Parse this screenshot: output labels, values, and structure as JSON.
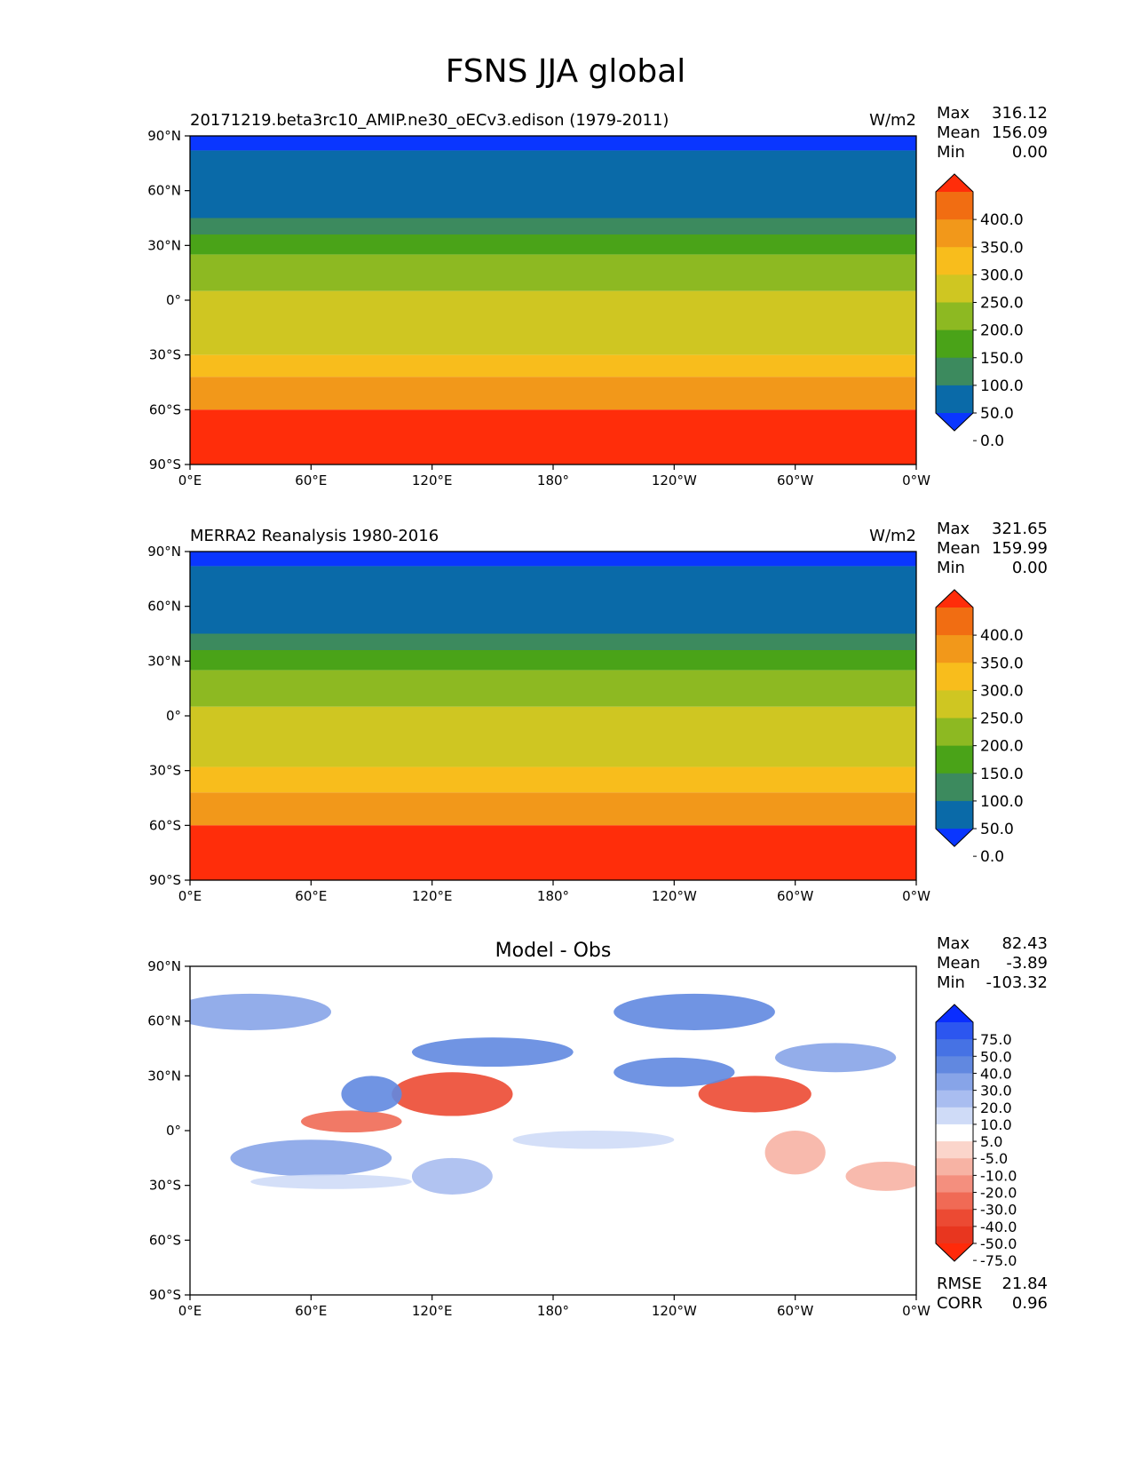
{
  "figure_title": "FSNS JJA global",
  "colors": {
    "lat_bands_main": [
      "#0a36ff",
      "#0a6aa8",
      "#3c8a5e",
      "#4aa318",
      "#8db922",
      "#cfc622",
      "#f8bd1c",
      "#f2981a",
      "#f16d12",
      "#ff2d0a"
    ],
    "diff_levels": [
      "#0a2dff",
      "#2c56f0",
      "#4672e4",
      "#6188e0",
      "#87a4e8",
      "#a9bdf0",
      "#cfdbf7",
      "#ffffff",
      "#fbd5cb",
      "#f7b3a4",
      "#f48f7e",
      "#f06a55",
      "#ec4a33",
      "#e8361f",
      "#ff2a0a"
    ]
  },
  "chart_data": [
    {
      "type": "heatmap",
      "title": "20171219.beta3rc10_AMIP.ne30_oECv3.edison (1979-2011)",
      "units": "W/m2",
      "stats": [
        {
          "label": "Max",
          "value": "316.12"
        },
        {
          "label": "Mean",
          "value": "156.09"
        },
        {
          "label": "Min",
          "value": "0.00"
        }
      ],
      "yticks": [
        "90°N",
        "60°N",
        "30°N",
        "0°",
        "30°S",
        "60°S",
        "90°S"
      ],
      "xticks": [
        "0°E",
        "60°E",
        "120°E",
        "180°",
        "120°W",
        "60°W",
        "0°W"
      ],
      "colorbar_levels": [
        "400.0",
        "350.0",
        "300.0",
        "250.0",
        "200.0",
        "150.0",
        "100.0",
        "50.0",
        "0.0"
      ],
      "zonal_profile": [
        {
          "lat_top": 90,
          "lat_bottom": 82,
          "level": 0
        },
        {
          "lat_top": 82,
          "lat_bottom": 45,
          "level": 1
        },
        {
          "lat_top": 45,
          "lat_bottom": 36,
          "level": 2
        },
        {
          "lat_top": 36,
          "lat_bottom": 25,
          "level": 3
        },
        {
          "lat_top": 25,
          "lat_bottom": 5,
          "level": 4
        },
        {
          "lat_top": 5,
          "lat_bottom": -30,
          "level": 5
        },
        {
          "lat_top": -30,
          "lat_bottom": -42,
          "level": 6
        },
        {
          "lat_top": -42,
          "lat_bottom": -60,
          "level": 7
        },
        {
          "lat_top": -60,
          "lat_bottom": -90,
          "level": 9
        }
      ]
    },
    {
      "type": "heatmap",
      "title": "MERRA2 Reanalysis 1980-2016",
      "units": "W/m2",
      "stats": [
        {
          "label": "Max",
          "value": "321.65"
        },
        {
          "label": "Mean",
          "value": "159.99"
        },
        {
          "label": "Min",
          "value": "0.00"
        }
      ],
      "yticks": [
        "90°N",
        "60°N",
        "30°N",
        "0°",
        "30°S",
        "60°S",
        "90°S"
      ],
      "xticks": [
        "0°E",
        "60°E",
        "120°E",
        "180°",
        "120°W",
        "60°W",
        "0°W"
      ],
      "colorbar_levels": [
        "400.0",
        "350.0",
        "300.0",
        "250.0",
        "200.0",
        "150.0",
        "100.0",
        "50.0",
        "0.0"
      ],
      "zonal_profile": [
        {
          "lat_top": 90,
          "lat_bottom": 82,
          "level": 0
        },
        {
          "lat_top": 82,
          "lat_bottom": 45,
          "level": 1
        },
        {
          "lat_top": 45,
          "lat_bottom": 36,
          "level": 2
        },
        {
          "lat_top": 36,
          "lat_bottom": 25,
          "level": 3
        },
        {
          "lat_top": 25,
          "lat_bottom": 5,
          "level": 4
        },
        {
          "lat_top": 5,
          "lat_bottom": -28,
          "level": 5
        },
        {
          "lat_top": -28,
          "lat_bottom": -42,
          "level": 6
        },
        {
          "lat_top": -42,
          "lat_bottom": -60,
          "level": 7
        },
        {
          "lat_top": -60,
          "lat_bottom": -90,
          "level": 9
        }
      ]
    },
    {
      "type": "heatmap",
      "title": "Model - Obs",
      "units": "",
      "stats": [
        {
          "label": "Max",
          "value": "82.43"
        },
        {
          "label": "Mean",
          "value": "-3.89"
        },
        {
          "label": "Min",
          "value": "-103.32"
        }
      ],
      "footer_stats": [
        {
          "label": "RMSE",
          "value": "21.84"
        },
        {
          "label": "CORR",
          "value": "0.96"
        }
      ],
      "yticks": [
        "90°N",
        "60°N",
        "30°N",
        "0°",
        "30°S",
        "60°S",
        "90°S"
      ],
      "xticks": [
        "0°E",
        "60°E",
        "120°E",
        "180°",
        "120°W",
        "60°W",
        "0°W"
      ],
      "colorbar_levels": [
        "75.0",
        "50.0",
        "40.0",
        "30.0",
        "20.0",
        "10.0",
        "5.0",
        "-5.0",
        "-10.0",
        "-20.0",
        "-30.0",
        "-40.0",
        "-50.0",
        "-75.0"
      ],
      "diff_patches": [
        {
          "lon": 130,
          "lat": 20,
          "rlon": 30,
          "rlat": 12,
          "level": 12
        },
        {
          "lon": 80,
          "lat": 5,
          "rlon": 25,
          "rlat": 6,
          "level": 11
        },
        {
          "lon": 280,
          "lat": 20,
          "rlon": 28,
          "rlat": 10,
          "level": 12
        },
        {
          "lon": 300,
          "lat": -12,
          "rlon": 15,
          "rlat": 12,
          "level": 9
        },
        {
          "lon": 345,
          "lat": -25,
          "rlon": 20,
          "rlat": 8,
          "level": 9
        },
        {
          "lon": 90,
          "lat": 20,
          "rlon": 15,
          "rlat": 10,
          "level": 3
        },
        {
          "lon": 240,
          "lat": 32,
          "rlon": 30,
          "rlat": 8,
          "level": 3
        },
        {
          "lon": 150,
          "lat": 43,
          "rlon": 40,
          "rlat": 8,
          "level": 3
        },
        {
          "lon": 60,
          "lat": -15,
          "rlon": 40,
          "rlat": 10,
          "level": 4
        },
        {
          "lon": 130,
          "lat": -25,
          "rlon": 20,
          "rlat": 10,
          "level": 5
        },
        {
          "lon": 30,
          "lat": 65,
          "rlon": 40,
          "rlat": 10,
          "level": 4
        },
        {
          "lon": 250,
          "lat": 65,
          "rlon": 40,
          "rlat": 10,
          "level": 3
        },
        {
          "lon": 320,
          "lat": 40,
          "rlon": 30,
          "rlat": 8,
          "level": 4
        },
        {
          "lon": 200,
          "lat": -5,
          "rlon": 40,
          "rlat": 5,
          "level": 6
        },
        {
          "lon": 70,
          "lat": -28,
          "rlon": 40,
          "rlat": 4,
          "level": 6
        }
      ]
    }
  ]
}
